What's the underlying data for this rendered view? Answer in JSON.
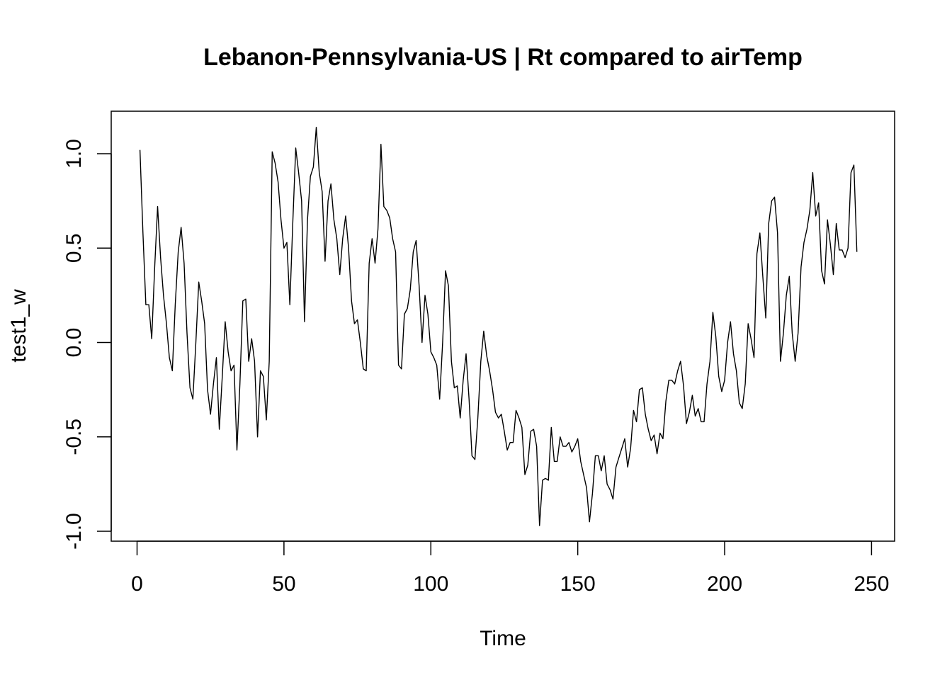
{
  "chart_data": {
    "type": "line",
    "title": "Lebanon-Pennsylvania-US | Rt compared to airTemp",
    "xlabel": "Time",
    "ylabel": "test1_w",
    "xlim": [
      0,
      250
    ],
    "ylim": [
      -1.0,
      1.15
    ],
    "x_ticks": [
      0,
      50,
      100,
      150,
      200,
      250
    ],
    "y_ticks": [
      -1.0,
      -0.5,
      0.0,
      0.5,
      1.0
    ],
    "x_tick_labels": [
      "0",
      "50",
      "100",
      "150",
      "200",
      "250"
    ],
    "y_tick_labels": [
      "-1.0",
      "-0.5",
      "0.0",
      "0.5",
      "1.0"
    ],
    "grid": false,
    "line_color": "#000000",
    "series": [
      {
        "x_start": 1,
        "x_step": 1,
        "values": [
          1.02,
          0.58,
          0.2,
          0.2,
          0.02,
          0.4,
          0.72,
          0.45,
          0.25,
          0.1,
          -0.08,
          -0.15,
          0.2,
          0.48,
          0.61,
          0.42,
          0.05,
          -0.24,
          -0.3,
          0.0,
          0.32,
          0.22,
          0.1,
          -0.25,
          -0.38,
          -0.22,
          -0.08,
          -0.46,
          -0.18,
          0.11,
          -0.05,
          -0.15,
          -0.12,
          -0.57,
          -0.22,
          0.22,
          0.23,
          -0.1,
          0.02,
          -0.1,
          -0.5,
          -0.15,
          -0.18,
          -0.41,
          -0.1,
          1.01,
          0.95,
          0.85,
          0.65,
          0.5,
          0.53,
          0.2,
          0.63,
          1.03,
          0.9,
          0.75,
          0.11,
          0.65,
          0.88,
          0.93,
          1.14,
          0.9,
          0.8,
          0.43,
          0.75,
          0.84,
          0.65,
          0.55,
          0.36,
          0.55,
          0.67,
          0.5,
          0.22,
          0.1,
          0.12,
          0.0,
          -0.14,
          -0.15,
          0.42,
          0.55,
          0.42,
          0.6,
          1.05,
          0.72,
          0.7,
          0.66,
          0.55,
          0.48,
          -0.12,
          -0.14,
          0.15,
          0.18,
          0.28,
          0.48,
          0.54,
          0.3,
          0.0,
          0.25,
          0.15,
          -0.05,
          -0.08,
          -0.12,
          -0.3,
          0.0,
          0.38,
          0.3,
          -0.1,
          -0.24,
          -0.23,
          -0.4,
          -0.2,
          -0.06,
          -0.3,
          -0.6,
          -0.62,
          -0.4,
          -0.1,
          0.06,
          -0.07,
          -0.15,
          -0.25,
          -0.37,
          -0.4,
          -0.38,
          -0.47,
          -0.57,
          -0.53,
          -0.53,
          -0.36,
          -0.4,
          -0.45,
          -0.7,
          -0.65,
          -0.47,
          -0.46,
          -0.55,
          -0.97,
          -0.73,
          -0.72,
          -0.73,
          -0.45,
          -0.63,
          -0.63,
          -0.5,
          -0.55,
          -0.55,
          -0.53,
          -0.58,
          -0.55,
          -0.51,
          -0.63,
          -0.7,
          -0.77,
          -0.95,
          -0.8,
          -0.6,
          -0.6,
          -0.68,
          -0.6,
          -0.75,
          -0.78,
          -0.83,
          -0.66,
          -0.61,
          -0.56,
          -0.51,
          -0.66,
          -0.56,
          -0.36,
          -0.42,
          -0.25,
          -0.24,
          -0.38,
          -0.46,
          -0.52,
          -0.49,
          -0.59,
          -0.48,
          -0.51,
          -0.31,
          -0.2,
          -0.2,
          -0.22,
          -0.15,
          -0.1,
          -0.23,
          -0.43,
          -0.37,
          -0.28,
          -0.39,
          -0.35,
          -0.42,
          -0.42,
          -0.22,
          -0.1,
          0.16,
          0.03,
          -0.18,
          -0.26,
          -0.2,
          0.0,
          0.11,
          -0.06,
          -0.15,
          -0.32,
          -0.35,
          -0.22,
          0.1,
          0.02,
          -0.08,
          0.47,
          0.58,
          0.35,
          0.13,
          0.63,
          0.75,
          0.77,
          0.58,
          -0.1,
          0.05,
          0.25,
          0.35,
          0.05,
          -0.1,
          0.05,
          0.4,
          0.53,
          0.6,
          0.7,
          0.9,
          0.67,
          0.74,
          0.38,
          0.31,
          0.65,
          0.52,
          0.36,
          0.63,
          0.49,
          0.49,
          0.45,
          0.5,
          0.9,
          0.94,
          0.48
        ]
      }
    ]
  }
}
